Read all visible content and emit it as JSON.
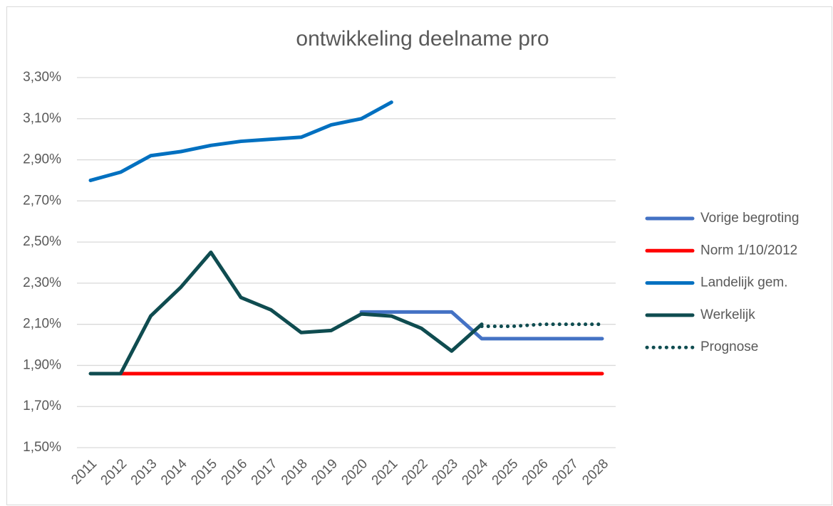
{
  "chart_data": {
    "type": "line",
    "title": "ontwikkeling deelname pro",
    "categories": [
      "2011",
      "2012",
      "2013",
      "2014",
      "2015",
      "2016",
      "2017",
      "2018",
      "2019",
      "2020",
      "2021",
      "2022",
      "2023",
      "2024",
      "2025",
      "2026",
      "2027",
      "2028"
    ],
    "ylim": [
      1.5,
      3.3
    ],
    "yticks": [
      {
        "value": 1.5,
        "label": "1,50%"
      },
      {
        "value": 1.7,
        "label": "1,70%"
      },
      {
        "value": 1.9,
        "label": "1,90%"
      },
      {
        "value": 2.1,
        "label": "2,10%"
      },
      {
        "value": 2.3,
        "label": "2,30%"
      },
      {
        "value": 2.5,
        "label": "2,50%"
      },
      {
        "value": 2.7,
        "label": "2,70%"
      },
      {
        "value": 2.9,
        "label": "2,90%"
      },
      {
        "value": 3.1,
        "label": "3,10%"
      },
      {
        "value": 3.3,
        "label": "3,30%"
      }
    ],
    "grid": true,
    "legend": "right",
    "series": [
      {
        "name": "Vorige begroting",
        "color": "#4472c4",
        "dash": "solid",
        "values": [
          null,
          null,
          null,
          null,
          null,
          null,
          null,
          null,
          null,
          2.16,
          2.16,
          2.16,
          2.16,
          2.03,
          2.03,
          2.03,
          2.03,
          2.03
        ]
      },
      {
        "name": "Norm 1/10/2012",
        "color": "#ff0000",
        "dash": "solid",
        "values": [
          null,
          1.86,
          1.86,
          1.86,
          1.86,
          1.86,
          1.86,
          1.86,
          1.86,
          1.86,
          1.86,
          1.86,
          1.86,
          1.86,
          1.86,
          1.86,
          1.86,
          1.86
        ]
      },
      {
        "name": "Landelijk gem.",
        "color": "#0070c0",
        "dash": "solid",
        "values": [
          2.8,
          2.84,
          2.92,
          2.94,
          2.97,
          2.99,
          3.0,
          3.01,
          3.07,
          3.1,
          3.18,
          null,
          null,
          null,
          null,
          null,
          null,
          null
        ]
      },
      {
        "name": "Werkelijk",
        "color": "#0f4c50",
        "dash": "solid",
        "values": [
          1.86,
          1.86,
          2.14,
          2.28,
          2.45,
          2.23,
          2.17,
          2.06,
          2.07,
          2.15,
          2.14,
          2.08,
          1.97,
          2.1,
          null,
          null,
          null,
          null
        ]
      },
      {
        "name": "Prognose",
        "color": "#0f4c50",
        "dash": "dotted",
        "values": [
          null,
          null,
          null,
          null,
          null,
          null,
          null,
          null,
          null,
          null,
          null,
          null,
          null,
          2.09,
          2.09,
          2.1,
          2.1,
          2.1
        ]
      }
    ]
  }
}
